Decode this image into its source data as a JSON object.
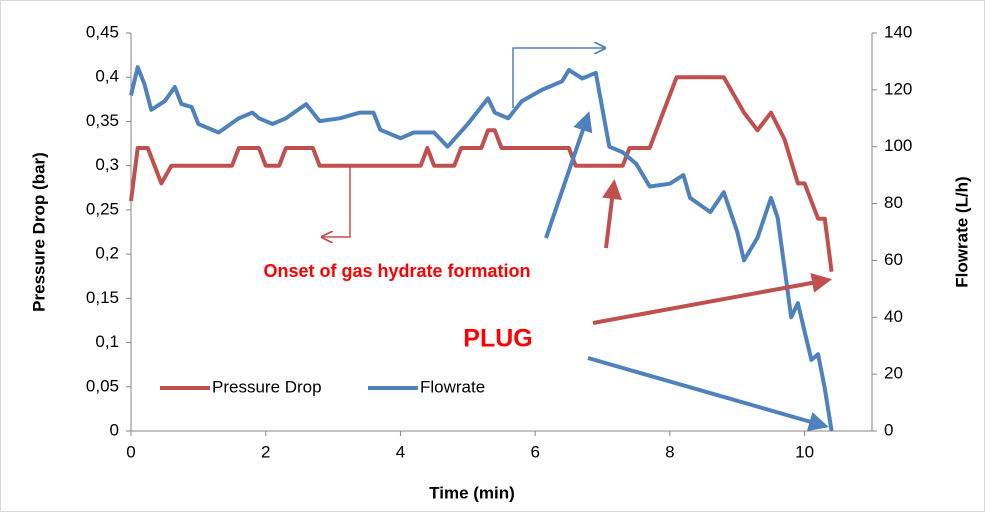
{
  "chart_data": {
    "type": "line",
    "x_label": "Time (min)",
    "y_label": "Pressure Drop (bar)",
    "y2_label": "Flowrate (L/h)",
    "xlim": [
      0,
      11
    ],
    "xticks": [
      0,
      2,
      4,
      6,
      8,
      10
    ],
    "ylim": [
      0,
      0.45
    ],
    "yticks": [
      0,
      {
        "value": 0.05,
        "label": "0,05"
      },
      {
        "value": 0.1,
        "label": "0,1"
      },
      {
        "value": 0.15,
        "label": "0,15"
      },
      {
        "value": 0.2,
        "label": "0,2"
      },
      {
        "value": 0.25,
        "label": "0,25"
      },
      {
        "value": 0.3,
        "label": "0,3"
      },
      {
        "value": 0.35,
        "label": "0,35"
      },
      {
        "value": 0.4,
        "label": "0,4"
      },
      {
        "value": 0.45,
        "label": "0,45"
      }
    ],
    "y2lim": [
      0,
      140
    ],
    "y2ticks": [
      0,
      20,
      40,
      60,
      80,
      100,
      120,
      140
    ],
    "annotations": [
      "Onset of gas hydrate formation",
      "PLUG"
    ],
    "series": [
      {
        "name": "Pressure Drop",
        "color": "#c0504d",
        "x": [
          0,
          0.1,
          0.25,
          0.45,
          0.6,
          1.5,
          1.6,
          1.9,
          2.0,
          2.2,
          2.3,
          2.7,
          2.8,
          4.3,
          4.4,
          4.5,
          4.8,
          4.9,
          5.2,
          5.3,
          5.4,
          5.5,
          6.5,
          6.6,
          7.3,
          7.4,
          7.7,
          7.8,
          8.0,
          8.1,
          8.8,
          9.1,
          9.3,
          9.5,
          9.7,
          9.9,
          10.0,
          10.2,
          10.3,
          10.4
        ],
        "values": [
          0.26,
          0.32,
          0.32,
          0.28,
          0.3,
          0.3,
          0.32,
          0.32,
          0.3,
          0.3,
          0.32,
          0.32,
          0.3,
          0.3,
          0.32,
          0.3,
          0.3,
          0.32,
          0.32,
          0.34,
          0.34,
          0.32,
          0.32,
          0.3,
          0.3,
          0.32,
          0.32,
          0.34,
          0.38,
          0.4,
          0.4,
          0.36,
          0.34,
          0.36,
          0.33,
          0.28,
          0.28,
          0.24,
          0.24,
          0.18
        ]
      },
      {
        "name": "Flowrate",
        "color": "#4f81bd",
        "axis": "y2",
        "x": [
          0,
          0.1,
          0.2,
          0.3,
          0.5,
          0.65,
          0.75,
          0.9,
          1.0,
          1.3,
          1.6,
          1.8,
          1.9,
          2.1,
          2.3,
          2.6,
          2.8,
          3.1,
          3.4,
          3.6,
          3.7,
          4.0,
          4.2,
          4.5,
          4.7,
          5.0,
          5.3,
          5.4,
          5.6,
          5.8,
          6.1,
          6.4,
          6.5,
          6.7,
          6.9,
          7.1,
          7.3,
          7.5,
          7.7,
          8.0,
          8.2,
          8.3,
          8.6,
          8.8,
          9.0,
          9.1,
          9.3,
          9.5,
          9.6,
          9.8,
          9.9,
          10.0,
          10.1,
          10.2,
          10.3,
          10.4
        ],
        "values": [
          118,
          128,
          122,
          113,
          116,
          121,
          115,
          114,
          108,
          105,
          110,
          112,
          110,
          108,
          110,
          115,
          109,
          110,
          112,
          112,
          106,
          103,
          105,
          105,
          100,
          108,
          117,
          112,
          110,
          116,
          120,
          123,
          127,
          124,
          126,
          100,
          98,
          94,
          86,
          87,
          90,
          82,
          77,
          84,
          70,
          60,
          68,
          82,
          75,
          40,
          45,
          35,
          25,
          27,
          15,
          0
        ]
      }
    ]
  }
}
